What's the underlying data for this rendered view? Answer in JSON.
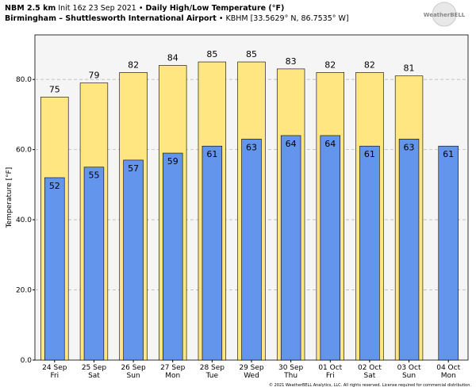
{
  "chart_data": {
    "type": "bar",
    "model": "NBM 2.5 km",
    "init": "Init 16z 23 Sep 2021",
    "separator": "•",
    "title": "Daily High/Low Temperature (°F)",
    "location": "Birmingham – Shuttlesworth International Airport",
    "station": "KBHM [33.5629° N, 86.7535° W]",
    "logo": "WeatherBELL",
    "y_label": "Temperature [°F]",
    "footer": "© 2021 WeatherBELL Analytics, LLC. All rights reserved. License required for commercial distribution.",
    "categories": [
      "24 Sep",
      "25 Sep",
      "26 Sep",
      "27 Sep",
      "28 Sep",
      "29 Sep",
      "30 Sep",
      "01 Oct",
      "02 Oct",
      "03 Oct",
      "04 Oct"
    ],
    "weekdays": [
      "Fri",
      "Sat",
      "Sun",
      "Mon",
      "Tue",
      "Wed",
      "Thu",
      "Fri",
      "Sat",
      "Sun",
      "Mon"
    ],
    "series": [
      {
        "color": "#ffe680",
        "values": [
          75,
          79,
          82,
          84,
          85,
          85,
          83,
          82,
          82,
          81,
          null
        ]
      },
      {
        "color": "#6495ed",
        "values": [
          52,
          55,
          57,
          59,
          61,
          63,
          64,
          64,
          61,
          63,
          61
        ]
      }
    ],
    "ylim": [
      0,
      92.7
    ],
    "yticks": [
      {
        "value": 0,
        "label": "0.0"
      },
      {
        "value": 20,
        "label": "20.0"
      },
      {
        "value": 40,
        "label": "40.0"
      },
      {
        "value": 60,
        "label": "60.0"
      },
      {
        "value": 80,
        "label": "80.0"
      }
    ],
    "grid": true
  }
}
